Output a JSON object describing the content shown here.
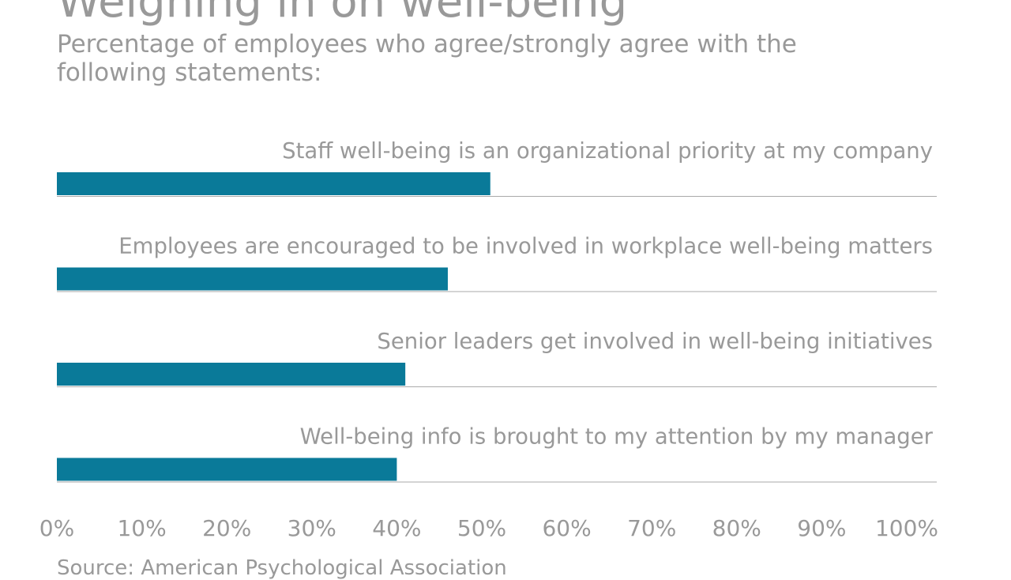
{
  "chart_data": {
    "type": "bar",
    "orientation": "horizontal",
    "title": "Weighing in on well-being",
    "subtitle": "Percentage of employees who agree/strongly agree with the following statements:",
    "categories": [
      "Staff well-being is an organizational priority at my company",
      "Employees are encouraged to be involved in workplace well-being matters",
      "Senior leaders get involved in well-being initiatives",
      "Well-being info is brought to my attention by my manager"
    ],
    "values": [
      51,
      46,
      41,
      40
    ],
    "xlim": [
      0,
      100
    ],
    "xticks": [
      "0%",
      "10%",
      "20%",
      "30%",
      "40%",
      "50%",
      "60%",
      "70%",
      "80%",
      "90%",
      "100%"
    ],
    "xlabel": "",
    "ylabel": "",
    "bar_color": "#0a7a99",
    "grid": false,
    "source": "Source: American Psychological Association"
  }
}
